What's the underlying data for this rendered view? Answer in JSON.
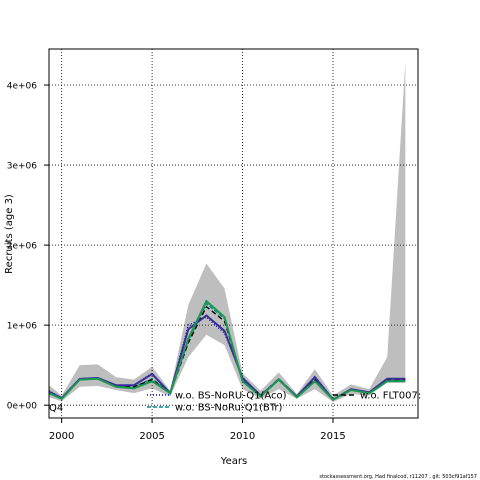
{
  "chart_data": {
    "type": "line",
    "xlabel": "Years",
    "ylabel": "Recruits (age 3)",
    "xlim": [
      1999.3,
      2019.7
    ],
    "ylim": [
      -160000,
      4450000
    ],
    "xticks": [
      2000,
      2005,
      2010,
      2015
    ],
    "xtick_labels": [
      "2000",
      "2005",
      "2010",
      "2015"
    ],
    "yticks": [
      0,
      1000000,
      2000000,
      3000000,
      4000000
    ],
    "ytick_labels": [
      "0e+00",
      "1e+06",
      "2e+06",
      "3e+06",
      "4e+06"
    ],
    "grid": true,
    "x": [
      1999,
      2000,
      2001,
      2002,
      2003,
      2004,
      2005,
      2006,
      2007,
      2008,
      2009,
      2010,
      2011,
      2012,
      2013,
      2014,
      2015,
      2016,
      2017,
      2018,
      2019
    ],
    "band": {
      "color": "#bebebe",
      "lower": [
        100000,
        50000,
        230000,
        240000,
        190000,
        150000,
        210000,
        110000,
        600000,
        880000,
        750000,
        200000,
        80000,
        200000,
        80000,
        200000,
        40000,
        140000,
        120000,
        280000,
        280000
      ],
      "upper": [
        250000,
        120000,
        500000,
        510000,
        350000,
        320000,
        480000,
        180000,
        1250000,
        1770000,
        1460000,
        400000,
        180000,
        410000,
        140000,
        450000,
        120000,
        260000,
        200000,
        600000,
        4280000
      ]
    },
    "series": [
      {
        "label": "w.o. BS-NoRU-Q1(Aco)",
        "color": "#0000cd",
        "dash": "1,2",
        "values": [
          180000,
          90000,
          330000,
          340000,
          240000,
          250000,
          400000,
          150000,
          1000000,
          1100000,
          900000,
          350000,
          120000,
          320000,
          110000,
          360000,
          70000,
          200000,
          160000,
          330000,
          330000
        ]
      },
      {
        "label": "w.o. BS-NoRu-Q1(BTr)",
        "color": "#008b8b",
        "dash": "4,2",
        "values": [
          160000,
          80000,
          330000,
          340000,
          240000,
          230000,
          330000,
          160000,
          800000,
          1270000,
          1080000,
          310000,
          110000,
          330000,
          100000,
          310000,
          70000,
          190000,
          150000,
          310000,
          310000
        ]
      },
      {
        "label": "w.o. FLT007:",
        "color": "#000000",
        "dash": "5,3",
        "values": [
          160000,
          80000,
          330000,
          340000,
          240000,
          230000,
          320000,
          150000,
          780000,
          1230000,
          1050000,
          320000,
          120000,
          330000,
          110000,
          320000,
          70000,
          190000,
          150000,
          320000,
          320000
        ]
      },
      {
        "label": "",
        "color": "#3a2f9a",
        "dash": "",
        "values": [
          170000,
          90000,
          330000,
          340000,
          250000,
          250000,
          390000,
          150000,
          950000,
          1120000,
          930000,
          340000,
          120000,
          320000,
          110000,
          350000,
          70000,
          200000,
          160000,
          330000,
          330000
        ]
      },
      {
        "label": "",
        "color": "#1a9850",
        "dash": "",
        "values": [
          150000,
          80000,
          320000,
          330000,
          230000,
          210000,
          300000,
          150000,
          830000,
          1300000,
          1100000,
          300000,
          110000,
          320000,
          100000,
          300000,
          70000,
          190000,
          150000,
          300000,
          300000
        ]
      }
    ],
    "legend_left": [
      "w.o. BS-NoRU-Q1(Aco)",
      "w.o. BS-NoRu-Q1(BTr)"
    ],
    "legend_right": [
      "w.o. FLT007:"
    ],
    "legend_clipped_label": "Q4"
  },
  "footer": "stockassessment.org, Had finalcod, r11207 , git: 503cf91af157"
}
